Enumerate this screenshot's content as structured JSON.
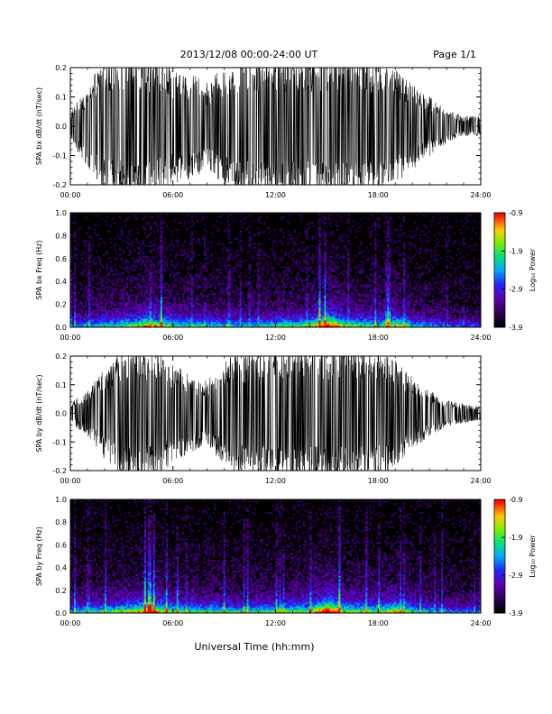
{
  "header": {
    "title": "2013/12/08  00:00-24:00 UT",
    "page": "Page 1/1"
  },
  "footer": {
    "xlabel": "Universal Time (hh:mm)"
  },
  "chart_data": [
    {
      "type": "line",
      "ylabel": "SPA bx dB/dt (nT/sec)",
      "xlim": [
        "00:00",
        "24:00"
      ],
      "ylim": [
        -0.2,
        0.2
      ],
      "xticks": [
        "00:00",
        "06:00",
        "12:00",
        "18:00",
        "24:00"
      ],
      "yticks": [
        "-0.2",
        "-0.1",
        "0.0",
        "0.1",
        "0.2"
      ],
      "envelope_hours": [
        0,
        1,
        2,
        3,
        4,
        5,
        6,
        7,
        8,
        9,
        10,
        11,
        12,
        13,
        14,
        15,
        16,
        17,
        18,
        19,
        20,
        21,
        22,
        23,
        24
      ],
      "envelope_amplitude": [
        0.04,
        0.12,
        0.21,
        0.21,
        0.21,
        0.2,
        0.17,
        0.16,
        0.13,
        0.18,
        0.21,
        0.21,
        0.21,
        0.21,
        0.21,
        0.21,
        0.21,
        0.21,
        0.2,
        0.17,
        0.13,
        0.09,
        0.05,
        0.03,
        0.03
      ],
      "color": "#000000"
    },
    {
      "type": "heatmap",
      "ylabel": "SPA bx Freq (Hz)",
      "xlim": [
        "00:00",
        "24:00"
      ],
      "ylim": [
        0.0,
        1.0
      ],
      "xticks": [
        "00:00",
        "06:00",
        "12:00",
        "18:00",
        "24:00"
      ],
      "yticks": [
        "0.0",
        "0.2",
        "0.4",
        "0.6",
        "0.8",
        "1.0"
      ],
      "colorbar": {
        "label": "Log₁₀ Power",
        "ticks": [
          "-0.9",
          "-1.9",
          "-2.9",
          "-3.9"
        ],
        "range": [
          -3.9,
          -0.9
        ]
      },
      "activity_hours": [
        0,
        2,
        4,
        4.5,
        6,
        8,
        10,
        12,
        14,
        15,
        15.5,
        16,
        18,
        19,
        20,
        22,
        24
      ],
      "activity_level": [
        0.35,
        0.5,
        0.65,
        0.8,
        0.55,
        0.5,
        0.45,
        0.55,
        0.6,
        0.95,
        0.85,
        0.6,
        0.55,
        0.7,
        0.5,
        0.35,
        0.3
      ]
    },
    {
      "type": "line",
      "ylabel": "SPA by dB/dt (nT/sec)",
      "xlim": [
        "00:00",
        "24:00"
      ],
      "ylim": [
        -0.2,
        0.2
      ],
      "xticks": [
        "00:00",
        "06:00",
        "12:00",
        "18:00",
        "24:00"
      ],
      "yticks": [
        "-0.2",
        "-0.1",
        "0.0",
        "0.1",
        "0.2"
      ],
      "envelope_hours": [
        0,
        1,
        2,
        3,
        4,
        5,
        6,
        7,
        8,
        9,
        10,
        11,
        12,
        13,
        14,
        15,
        16,
        17,
        18,
        19,
        20,
        21,
        22,
        23,
        24
      ],
      "envelope_amplitude": [
        0.03,
        0.07,
        0.14,
        0.2,
        0.21,
        0.2,
        0.15,
        0.12,
        0.1,
        0.16,
        0.19,
        0.2,
        0.21,
        0.21,
        0.21,
        0.21,
        0.21,
        0.21,
        0.2,
        0.16,
        0.11,
        0.07,
        0.04,
        0.03,
        0.02
      ],
      "color": "#000000"
    },
    {
      "type": "heatmap",
      "ylabel": "SPA by Freq (Hz)",
      "xlim": [
        "00:00",
        "24:00"
      ],
      "ylim": [
        0.0,
        1.0
      ],
      "xticks": [
        "00:00",
        "06:00",
        "12:00",
        "18:00",
        "24:00"
      ],
      "yticks": [
        "0.0",
        "0.2",
        "0.4",
        "0.6",
        "0.8",
        "1.0"
      ],
      "colorbar": {
        "label": "Log₁₀ Power",
        "ticks": [
          "-0.9",
          "-1.9",
          "-2.9",
          "-3.9"
        ],
        "range": [
          -3.9,
          -0.9
        ]
      },
      "activity_hours": [
        0,
        2,
        4,
        4.5,
        6,
        8,
        10,
        12,
        14,
        15,
        15.5,
        16,
        18,
        19,
        20,
        22,
        24
      ],
      "activity_level": [
        0.45,
        0.55,
        0.7,
        0.85,
        0.6,
        0.55,
        0.5,
        0.6,
        0.65,
        1.0,
        0.9,
        0.65,
        0.6,
        0.75,
        0.55,
        0.4,
        0.35
      ]
    }
  ]
}
